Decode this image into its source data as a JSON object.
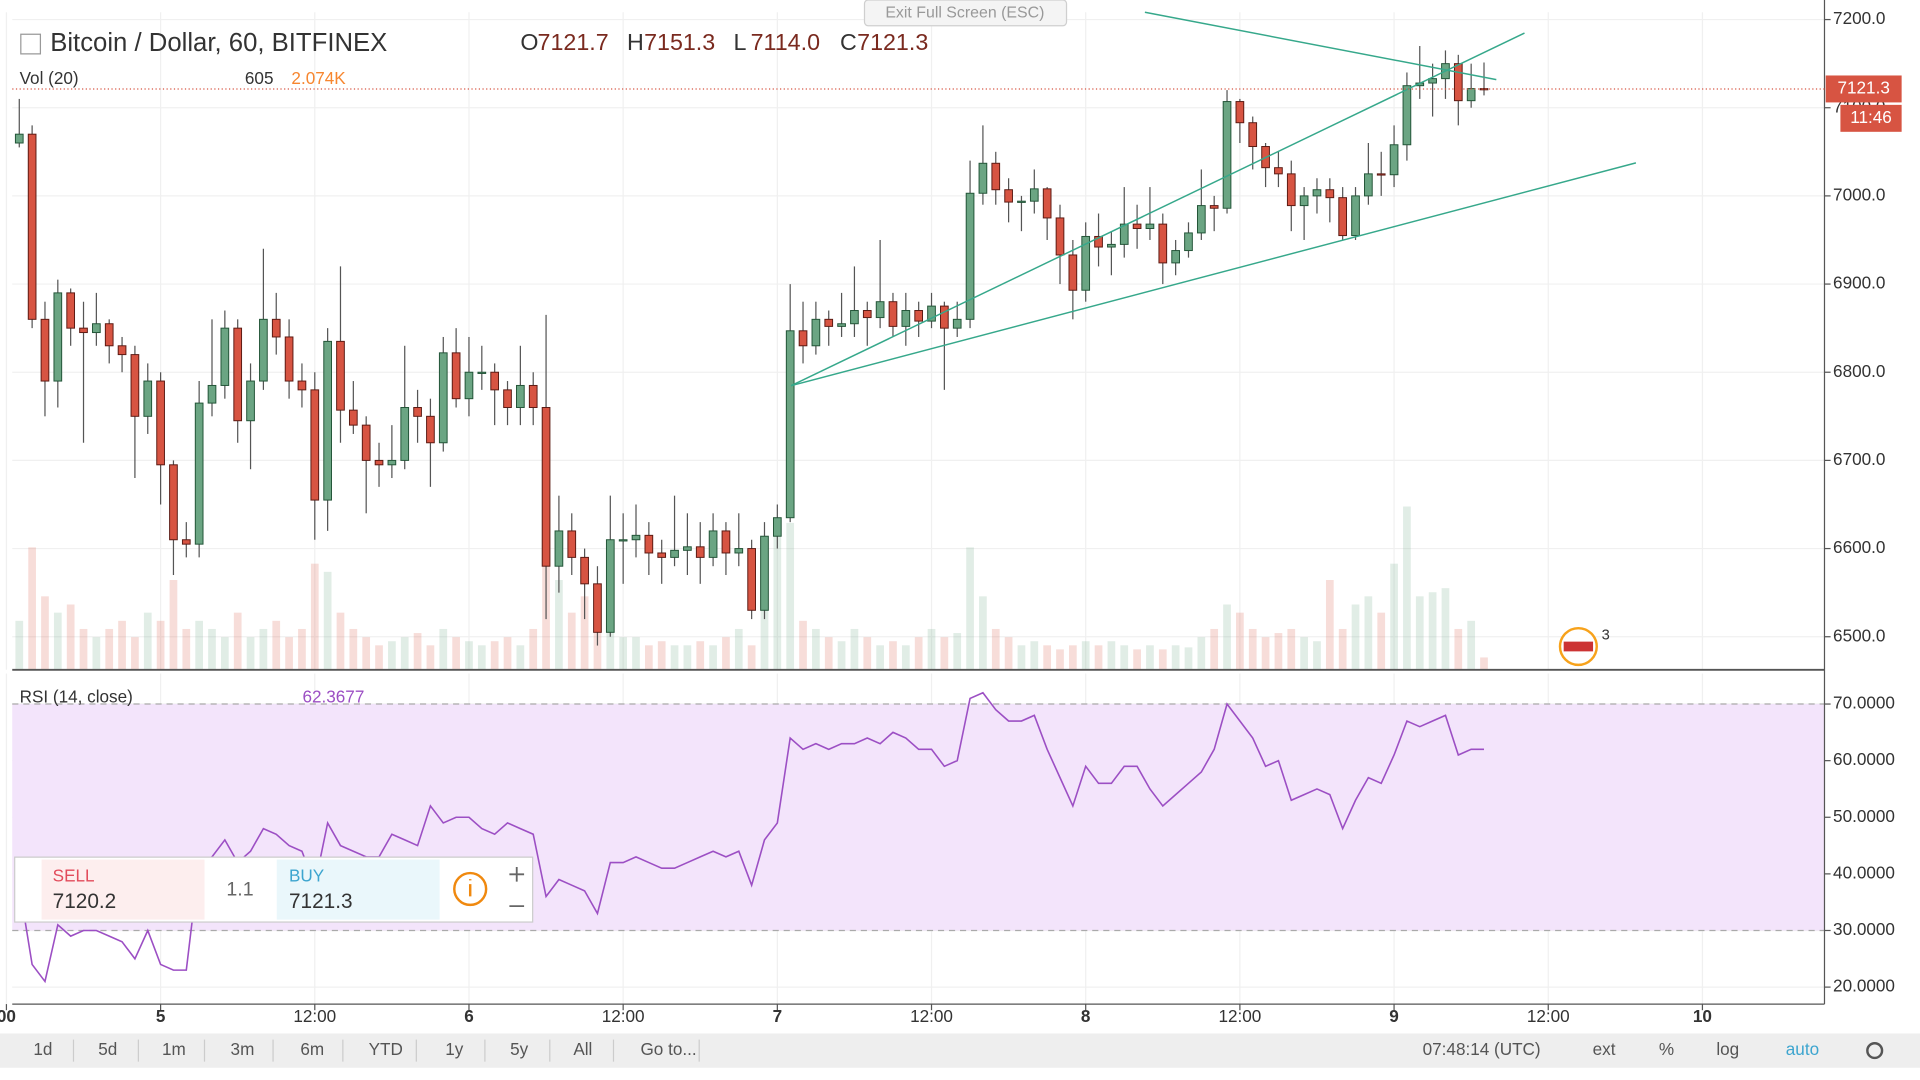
{
  "chart_data": {
    "type": "candlestick",
    "title": "Bitcoin / Dollar, 60, BITFINEX",
    "ohlc_labels": [
      "O",
      "H",
      "L",
      "C"
    ],
    "ohlc_values": [
      "7121.7",
      "7151.3",
      "7114.0",
      "7121.3"
    ],
    "up_color": "#6ba583",
    "down_color": "#d75442",
    "ohlc": [
      [
        7060,
        7110,
        7055,
        7070
      ],
      [
        7070,
        7080,
        6850,
        6860
      ],
      [
        6860,
        6880,
        6750,
        6790
      ],
      [
        6790,
        6905,
        6760,
        6890
      ],
      [
        6890,
        6895,
        6830,
        6850
      ],
      [
        6850,
        6880,
        6720,
        6845
      ],
      [
        6845,
        6890,
        6830,
        6855
      ],
      [
        6855,
        6860,
        6810,
        6830
      ],
      [
        6830,
        6840,
        6800,
        6820
      ],
      [
        6820,
        6830,
        6680,
        6750
      ],
      [
        6750,
        6810,
        6730,
        6790
      ],
      [
        6790,
        6800,
        6650,
        6695
      ],
      [
        6695,
        6700,
        6570,
        6610
      ],
      [
        6610,
        6630,
        6590,
        6605
      ],
      [
        6605,
        6790,
        6590,
        6765
      ],
      [
        6765,
        6860,
        6750,
        6785
      ],
      [
        6785,
        6870,
        6770,
        6850
      ],
      [
        6850,
        6860,
        6720,
        6745
      ],
      [
        6745,
        6810,
        6690,
        6790
      ],
      [
        6790,
        6940,
        6780,
        6860
      ],
      [
        6860,
        6890,
        6820,
        6840
      ],
      [
        6840,
        6860,
        6770,
        6790
      ],
      [
        6790,
        6810,
        6760,
        6780
      ],
      [
        6780,
        6800,
        6610,
        6655
      ],
      [
        6655,
        6850,
        6620,
        6835
      ],
      [
        6835,
        6920,
        6720,
        6757
      ],
      [
        6757,
        6790,
        6730,
        6740
      ],
      [
        6740,
        6750,
        6640,
        6700
      ],
      [
        6700,
        6720,
        6670,
        6695
      ],
      [
        6695,
        6740,
        6680,
        6700
      ],
      [
        6700,
        6830,
        6690,
        6760
      ],
      [
        6760,
        6780,
        6720,
        6750
      ],
      [
        6750,
        6770,
        6670,
        6720
      ],
      [
        6720,
        6840,
        6710,
        6822
      ],
      [
        6822,
        6850,
        6760,
        6770
      ],
      [
        6770,
        6840,
        6750,
        6800
      ],
      [
        6800,
        6830,
        6780,
        6800
      ],
      [
        6800,
        6810,
        6740,
        6780
      ],
      [
        6780,
        6790,
        6740,
        6760
      ],
      [
        6760,
        6830,
        6740,
        6785
      ],
      [
        6785,
        6800,
        6740,
        6760
      ],
      [
        6760,
        6865,
        6520,
        6580
      ],
      [
        6580,
        6660,
        6550,
        6620
      ],
      [
        6620,
        6640,
        6570,
        6590
      ],
      [
        6590,
        6600,
        6520,
        6560
      ],
      [
        6560,
        6580,
        6490,
        6505
      ],
      [
        6505,
        6660,
        6500,
        6610
      ],
      [
        6610,
        6640,
        6560,
        6610
      ],
      [
        6610,
        6650,
        6590,
        6615
      ],
      [
        6615,
        6630,
        6570,
        6595
      ],
      [
        6595,
        6610,
        6560,
        6590
      ],
      [
        6590,
        6660,
        6580,
        6598
      ],
      [
        6598,
        6640,
        6570,
        6602
      ],
      [
        6602,
        6630,
        6560,
        6590
      ],
      [
        6590,
        6640,
        6580,
        6620
      ],
      [
        6620,
        6630,
        6570,
        6595
      ],
      [
        6595,
        6640,
        6580,
        6600
      ],
      [
        6600,
        6610,
        6520,
        6530
      ],
      [
        6530,
        6630,
        6520,
        6614
      ],
      [
        6614,
        6650,
        6600,
        6635
      ],
      [
        6635,
        6900,
        6630,
        6847
      ],
      [
        6847,
        6880,
        6810,
        6830
      ],
      [
        6830,
        6880,
        6820,
        6860
      ],
      [
        6860,
        6870,
        6830,
        6852
      ],
      [
        6852,
        6890,
        6840,
        6855
      ],
      [
        6855,
        6920,
        6840,
        6870
      ],
      [
        6870,
        6880,
        6830,
        6862
      ],
      [
        6862,
        6950,
        6850,
        6880
      ],
      [
        6880,
        6890,
        6840,
        6852
      ],
      [
        6852,
        6890,
        6830,
        6870
      ],
      [
        6870,
        6880,
        6840,
        6858
      ],
      [
        6858,
        6890,
        6850,
        6875
      ],
      [
        6875,
        6880,
        6780,
        6850
      ],
      [
        6850,
        6880,
        6840,
        6860
      ],
      [
        6860,
        7040,
        6850,
        7003
      ],
      [
        7003,
        7080,
        6990,
        7037
      ],
      [
        7037,
        7050,
        6990,
        7007
      ],
      [
        7007,
        7020,
        6970,
        6993
      ],
      [
        6993,
        7000,
        6960,
        6994
      ],
      [
        6994,
        7030,
        6980,
        7008
      ],
      [
        7008,
        7010,
        6950,
        6975
      ],
      [
        6975,
        6990,
        6900,
        6933
      ],
      [
        6933,
        6950,
        6860,
        6893
      ],
      [
        6893,
        6970,
        6880,
        6954
      ],
      [
        6954,
        6980,
        6920,
        6942
      ],
      [
        6942,
        6960,
        6910,
        6945
      ],
      [
        6945,
        7010,
        6930,
        6968
      ],
      [
        6968,
        6990,
        6940,
        6963
      ],
      [
        6963,
        7010,
        6950,
        6968
      ],
      [
        6968,
        6980,
        6900,
        6924
      ],
      [
        6924,
        6950,
        6910,
        6938
      ],
      [
        6938,
        6970,
        6930,
        6958
      ],
      [
        6958,
        7030,
        6950,
        6989
      ],
      [
        6989,
        7000,
        6960,
        6986
      ],
      [
        6986,
        7120,
        6980,
        7107
      ],
      [
        7107,
        7110,
        7060,
        7083
      ],
      [
        7083,
        7090,
        7030,
        7056
      ],
      [
        7056,
        7060,
        7010,
        7032
      ],
      [
        7032,
        7050,
        7010,
        7025
      ],
      [
        7025,
        7040,
        6960,
        6989
      ],
      [
        6989,
        7010,
        6950,
        7000
      ],
      [
        7000,
        7020,
        6980,
        7007
      ],
      [
        7007,
        7020,
        6970,
        6998
      ],
      [
        6998,
        7010,
        6950,
        6955
      ],
      [
        6955,
        7010,
        6950,
        7000
      ],
      [
        7000,
        7060,
        6990,
        7025
      ],
      [
        7025,
        7050,
        7000,
        7024
      ],
      [
        7024,
        7080,
        7010,
        7058
      ],
      [
        7058,
        7140,
        7040,
        7125
      ],
      [
        7125,
        7170,
        7110,
        7128
      ],
      [
        7128,
        7150,
        7090,
        7133
      ],
      [
        7133,
        7165,
        7110,
        7150
      ],
      [
        7150,
        7160,
        7080,
        7108
      ],
      [
        7108,
        7150,
        7100,
        7121.7
      ],
      [
        7121.7,
        7151.3,
        7114,
        7121.3
      ]
    ],
    "xlim": [
      -1.5,
      140.5
    ],
    "xticks": [
      {
        "value": -1,
        "label": "00"
      },
      {
        "value": 11,
        "label": "5"
      },
      {
        "value": 23,
        "label": "12:00"
      },
      {
        "value": 35,
        "label": "6"
      },
      {
        "value": 47,
        "label": "12:00"
      },
      {
        "value": 59,
        "label": "7"
      },
      {
        "value": 71,
        "label": "12:00"
      },
      {
        "value": 83,
        "label": "8"
      },
      {
        "value": 95,
        "label": "12:00"
      },
      {
        "value": 107,
        "label": "9"
      },
      {
        "value": 119,
        "label": "12:00"
      },
      {
        "value": 131,
        "label": "10"
      }
    ],
    "ylim": [
      6462.5,
      7208.3
    ],
    "yticks": [
      {
        "value": 6500,
        "label": "6500.0"
      },
      {
        "value": 6600,
        "label": "6600.0"
      },
      {
        "value": 6700,
        "label": "6700.0"
      },
      {
        "value": 6800,
        "label": "6800.0"
      },
      {
        "value": 6900,
        "label": "6900.0"
      },
      {
        "value": 7000,
        "label": "7000.0"
      },
      {
        "value": 7100,
        "label": "7100.0"
      },
      {
        "value": 7200,
        "label": "7200.0"
      }
    ],
    "grid": true,
    "last_price_time": "11:46",
    "volume": {
      "title": "Vol (20)",
      "last": "605",
      "ma": "2.074K",
      "ylim": [
        0,
        9000
      ],
      "values": [
        2400,
        6000,
        3600,
        2800,
        3200,
        2000,
        1600,
        2000,
        2400,
        1600,
        2800,
        2400,
        4400,
        2000,
        2400,
        2000,
        1600,
        2800,
        1600,
        2000,
        2400,
        1600,
        2000,
        5200,
        4800,
        2800,
        2000,
        1600,
        1200,
        1400,
        1600,
        1800,
        1200,
        2000,
        1600,
        1400,
        1200,
        1400,
        1600,
        1200,
        2000,
        7200,
        4400,
        2800,
        3600,
        2000,
        3200,
        1600,
        1600,
        1200,
        1400,
        1200,
        1200,
        1400,
        1200,
        1600,
        2000,
        1200,
        4400,
        6800,
        7200,
        2400,
        2000,
        1600,
        1400,
        2000,
        1600,
        1200,
        1400,
        1200,
        1600,
        2000,
        1600,
        1800,
        6000,
        3600,
        2000,
        1600,
        1200,
        1400,
        1200,
        1000,
        1200,
        1400,
        1200,
        1400,
        1200,
        1000,
        1200,
        1000,
        1200,
        1100,
        1600,
        2000,
        3200,
        2800,
        2000,
        1600,
        1800,
        2000,
        1600,
        1400,
        4400,
        2000,
        3200,
        3600,
        2800,
        5200,
        8000,
        3600,
        3800,
        4000,
        2000,
        2400,
        605
      ]
    },
    "rsi": {
      "title": "RSI (14, close)",
      "last": "62.3677",
      "color": "#9c4fc4",
      "band": [
        30,
        70
      ],
      "ylim": [
        17,
        75.4
      ],
      "yticks": [
        {
          "value": 20,
          "label": "20.0000"
        },
        {
          "value": 30,
          "label": "30.0000"
        },
        {
          "value": 40,
          "label": "40.0000"
        },
        {
          "value": 50,
          "label": "50.0000"
        },
        {
          "value": 60,
          "label": "60.0000"
        },
        {
          "value": 70,
          "label": "70.0000"
        }
      ],
      "values": [
        38,
        24,
        21,
        31,
        29,
        30,
        30,
        29,
        28,
        25,
        30,
        24,
        23,
        23,
        42,
        43,
        46,
        42,
        44,
        48,
        47,
        45,
        44,
        38,
        49,
        45,
        44,
        43,
        43,
        47,
        46,
        45,
        52,
        49,
        50,
        50,
        48,
        47,
        49,
        48,
        47,
        36,
        39,
        38,
        37,
        33,
        42,
        42,
        43,
        42,
        41,
        41,
        42,
        43,
        44,
        43,
        44,
        38,
        46,
        49,
        64,
        62,
        63,
        62,
        63,
        63,
        64,
        63,
        65,
        64,
        62,
        62,
        59,
        60,
        71,
        72,
        69,
        67,
        67,
        68,
        62,
        57,
        52,
        59,
        56,
        56,
        59,
        59,
        55,
        52,
        54,
        56,
        58,
        62,
        70,
        67,
        64,
        59,
        60,
        53,
        54,
        55,
        54,
        48,
        53,
        57,
        56,
        61,
        67,
        66,
        67,
        68,
        61,
        62,
        62
      ]
    }
  },
  "trade_widget": {
    "sell_label": "SELL",
    "sell_price": "7120.2",
    "spread": "1.1",
    "buy_label": "BUY",
    "buy_price": "7121.3"
  },
  "overlay": {
    "exit_fullscreen": "Exit Full Screen (ESC)",
    "events_count": "3"
  },
  "toolbar": {
    "buttons": [
      "1d",
      "5d",
      "1m",
      "3m",
      "6m",
      "YTD",
      "1y",
      "5y",
      "All",
      "Go to..."
    ],
    "clock": "07:48:14 (UTC)",
    "options": [
      "ext",
      "%",
      "log",
      "auto"
    ]
  }
}
